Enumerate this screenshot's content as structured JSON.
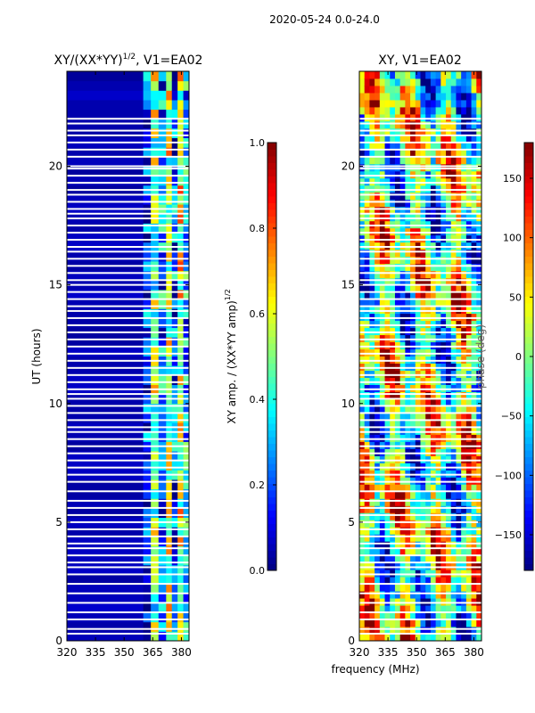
{
  "figure": {
    "suptitle": "2020-05-24 0.0-24.0",
    "shared_xlabel": "frequency (MHz)"
  },
  "chart_data": [
    {
      "type": "heatmap",
      "title_text": "XY/(XX*YY)",
      "title_exp": "1/2",
      "title_suffix": ", V1=EA02",
      "xlabel": "frequency (MHz)",
      "ylabel": "UT (hours)",
      "xlim": [
        320,
        384
      ],
      "ylim": [
        0,
        24
      ],
      "xticks": [
        320,
        335,
        350,
        365,
        380
      ],
      "yticks": [
        0,
        5,
        10,
        15,
        20
      ],
      "colormap": "jet",
      "colorbar": {
        "label_text": "XY amp. / (XX*YY amp)",
        "label_exp": "1/2",
        "range": [
          0.0,
          1.0
        ],
        "ticks": [
          "0.0",
          "0.2",
          "0.4",
          "0.6",
          "0.8",
          "1.0"
        ],
        "tick_values": [
          0.0,
          0.2,
          0.4,
          0.6,
          0.8,
          1.0
        ]
      },
      "bands": [
        {
          "from": 320,
          "to": 360,
          "level": 0.05
        },
        {
          "from": 360,
          "to": 364,
          "level": 0.15
        },
        {
          "from": 364,
          "to": 368,
          "level": 0.5
        },
        {
          "from": 368,
          "to": 372,
          "level": 0.25
        },
        {
          "from": 372,
          "to": 375,
          "level": 0.55
        },
        {
          "from": 375,
          "to": 378,
          "level": 0.2
        },
        {
          "from": 378,
          "to": 381,
          "level": 0.6
        },
        {
          "from": 381,
          "to": 384,
          "level": 0.3
        }
      ]
    },
    {
      "type": "heatmap",
      "title_text": "XY, V1=EA02",
      "xlabel": "frequency (MHz)",
      "ylabel": "",
      "xlim": [
        320,
        384
      ],
      "ylim": [
        0,
        24
      ],
      "xticks": [
        320,
        335,
        350,
        365,
        380
      ],
      "yticks": [
        0,
        5,
        10,
        15,
        20
      ],
      "colormap": "jet",
      "colorbar": {
        "label_text": "phase (deg)",
        "range": [
          -180,
          180
        ],
        "ticks": [
          "150",
          "100",
          "50",
          "0",
          "−50",
          "−100",
          "−150"
        ],
        "tick_values": [
          150,
          100,
          50,
          0,
          -50,
          -100,
          -150
        ]
      }
    }
  ],
  "flagged_times_ut": [
    0.3,
    0.5,
    0.9,
    1.2,
    1.6,
    2.0,
    2.4,
    2.8,
    3.1,
    3.3,
    3.6,
    3.9,
    4.1,
    4.4,
    4.7,
    5.0,
    5.3,
    5.6,
    5.9,
    6.3,
    6.7,
    7.0,
    7.3,
    7.6,
    7.9,
    8.2,
    8.5,
    8.8,
    9.0,
    9.3,
    9.6,
    9.9,
    10.2,
    10.4,
    10.6,
    10.9,
    11.2,
    11.5,
    11.8,
    12.1,
    12.4,
    12.7,
    13.0,
    13.3,
    13.6,
    13.9,
    14.1,
    14.4,
    14.7,
    15.0,
    15.2,
    15.5,
    15.8,
    16.1,
    16.4,
    16.6,
    16.9,
    17.2,
    17.5,
    17.8,
    18.0,
    18.2,
    18.5,
    18.8,
    19.0,
    19.3,
    19.6,
    19.9,
    20.0,
    20.4,
    20.7,
    21.0,
    21.3,
    21.5,
    21.8,
    22.0
  ]
}
